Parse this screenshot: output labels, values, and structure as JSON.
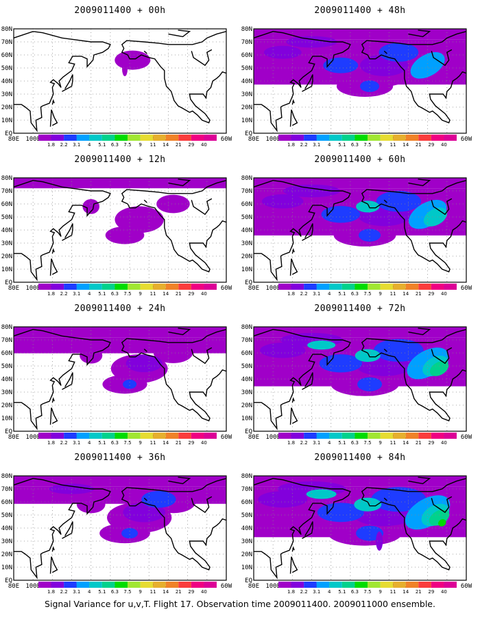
{
  "panels": [
    {
      "title": "2009011400 + 00h",
      "lead": 0
    },
    {
      "title": "2009011400 + 48h",
      "lead": 48
    },
    {
      "title": "2009011400 + 12h",
      "lead": 12
    },
    {
      "title": "2009011400 + 60h",
      "lead": 60
    },
    {
      "title": "2009011400 + 24h",
      "lead": 24
    },
    {
      "title": "2009011400 + 72h",
      "lead": 72
    },
    {
      "title": "2009011400 + 36h",
      "lead": 36
    },
    {
      "title": "2009011400 + 84h",
      "lead": 84
    }
  ],
  "lat_labels": [
    "80N",
    "70N",
    "60N",
    "50N",
    "40N",
    "30N",
    "20N",
    "10N",
    "EQ"
  ],
  "lon_labels": [
    "80E",
    "100E",
    "120E",
    "140E",
    "160E",
    "180",
    "160W",
    "140W",
    "120W",
    "100W",
    "80W",
    "60W"
  ],
  "colorbar": {
    "labels": [
      "1.8",
      "2.2",
      "3.1",
      "4",
      "5.1",
      "6.3",
      "7.5",
      "9",
      "11",
      "14",
      "21",
      "29",
      "40"
    ],
    "colors": [
      "#a000c8",
      "#8200dc",
      "#1e3cff",
      "#00a0ff",
      "#00c8c8",
      "#00d28c",
      "#00dc00",
      "#a0e632",
      "#e6dc32",
      "#e6af2d",
      "#f08228",
      "#fa3c3c",
      "#f00082"
    ]
  },
  "footer": "Signal Variance for u,v,T. Flight 17. Observation time 2009011400. 2009011000 ensemble."
}
